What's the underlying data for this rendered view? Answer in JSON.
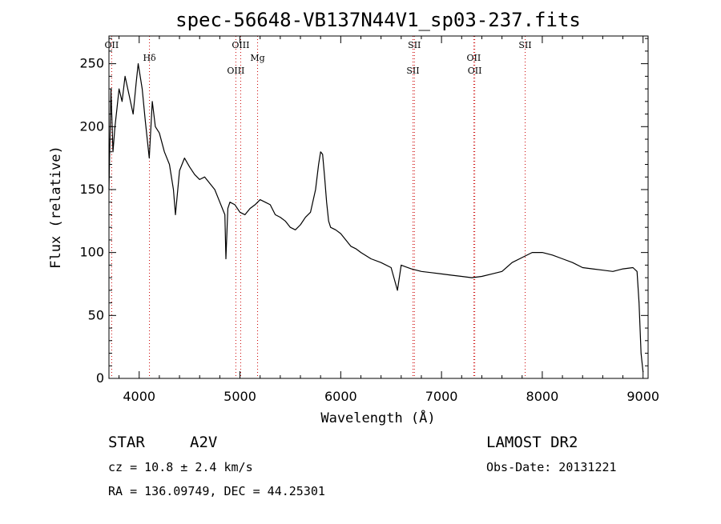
{
  "chart_data": {
    "type": "line",
    "title": "spec-56648-VB137N44V1_sp03-237.fits",
    "xlabel": "Wavelength (Å)",
    "ylabel": "Flux (relative)",
    "xlim": [
      3700,
      9050
    ],
    "ylim": [
      0,
      272
    ],
    "x_ticks": [
      4000,
      5000,
      6000,
      7000,
      8000,
      9000
    ],
    "y_ticks": [
      0,
      50,
      100,
      150,
      200,
      250
    ],
    "grid": false,
    "line_color": "#000000",
    "marker_color": "#cc0000",
    "spectral_lines": [
      {
        "label": "OII",
        "wavelength": 3727
      },
      {
        "label": "Hδ",
        "wavelength": 4102
      },
      {
        "label": "OIII",
        "wavelength": 4959
      },
      {
        "label": "OIII",
        "wavelength": 5007
      },
      {
        "label": "Mg",
        "wavelength": 5175
      },
      {
        "label": "SII",
        "wavelength": 6717
      },
      {
        "label": "SII",
        "wavelength": 6731
      },
      {
        "label": "OII",
        "wavelength": 7320
      },
      {
        "label": "OII",
        "wavelength": 7330
      },
      {
        "label": "SII",
        "wavelength": 7830
      }
    ],
    "series": [
      {
        "x": [
          3700,
          3720,
          3740,
          3760,
          3780,
          3800,
          3830,
          3860,
          3900,
          3940,
          3970,
          3990,
          4010,
          4030,
          4060,
          4100,
          4130,
          4160,
          4200,
          4250,
          4300,
          4340,
          4360,
          4400,
          4450,
          4500,
          4550,
          4600,
          4650,
          4700,
          4750,
          4800,
          4850,
          4861,
          4880,
          4900,
          4950,
          5000,
          5050,
          5100,
          5150,
          5200,
          5250,
          5300,
          5350,
          5400,
          5450,
          5500,
          5550,
          5600,
          5650,
          5700,
          5750,
          5780,
          5800,
          5820,
          5840,
          5860,
          5880,
          5900,
          5950,
          6000,
          6050,
          6100,
          6150,
          6200,
          6300,
          6400,
          6500,
          6563,
          6600,
          6700,
          6800,
          6900,
          7000,
          7100,
          7200,
          7300,
          7400,
          7500,
          7600,
          7700,
          7800,
          7900,
          8000,
          8100,
          8200,
          8300,
          8400,
          8500,
          8600,
          8700,
          8800,
          8900,
          8940,
          8960,
          8980,
          9000
        ],
        "y": [
          150,
          230,
          180,
          200,
          215,
          230,
          220,
          240,
          225,
          210,
          235,
          250,
          240,
          230,
          205,
          175,
          220,
          200,
          195,
          180,
          170,
          150,
          130,
          165,
          175,
          168,
          162,
          158,
          160,
          155,
          150,
          140,
          130,
          95,
          135,
          140,
          138,
          132,
          130,
          135,
          138,
          142,
          140,
          138,
          130,
          128,
          125,
          120,
          118,
          122,
          128,
          132,
          150,
          170,
          180,
          178,
          160,
          140,
          125,
          120,
          118,
          115,
          110,
          105,
          103,
          100,
          95,
          92,
          88,
          70,
          90,
          87,
          85,
          84,
          83,
          82,
          81,
          80,
          81,
          83,
          85,
          92,
          96,
          100,
          100,
          98,
          95,
          92,
          88,
          87,
          86,
          85,
          87,
          88,
          85,
          60,
          20,
          5
        ]
      }
    ]
  },
  "info": {
    "object_class": "STAR",
    "subclass": "A2V",
    "survey": "LAMOST DR2",
    "redshift": "cz = 10.8 ± 2.4 km/s",
    "obs_date": "Obs-Date: 20131221",
    "coords": "RA = 136.09749, DEC =  44.25301"
  }
}
